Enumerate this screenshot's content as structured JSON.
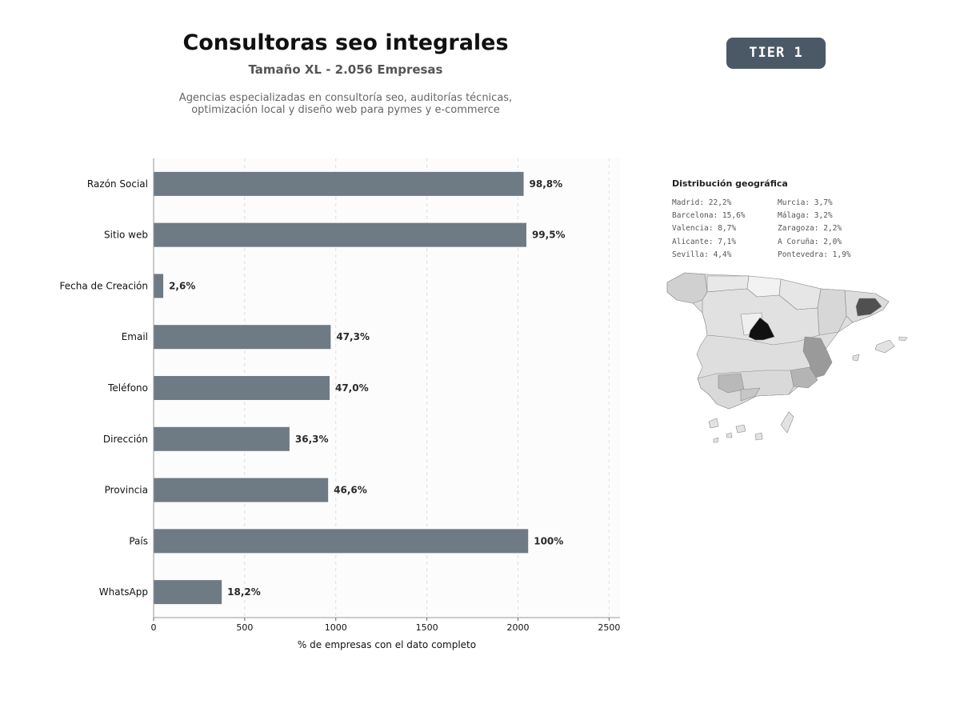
{
  "header": {
    "title": "Consultoras seo integrales",
    "subtitle": "Tamaño XL - 2.056 Empresas",
    "description_line1": "Agencias especializadas en consultoría seo, auditorías técnicas,",
    "description_line2": "optimización local y diseño web para pymes y e-commerce",
    "tier_badge": "TIER 1"
  },
  "chart_data": {
    "type": "bar",
    "orientation": "horizontal",
    "categories": [
      "Razón Social",
      "Sitio web",
      "Fecha de Creación",
      "Email",
      "Teléfono",
      "Dirección",
      "Provincia",
      "País",
      "WhatsApp"
    ],
    "values": [
      2031,
      2046,
      53,
      972,
      966,
      746,
      958,
      2056,
      374
    ],
    "labels": [
      "98,8%",
      "99,5%",
      "2,6%",
      "47,3%",
      "47,0%",
      "36,3%",
      "46,6%",
      "100%",
      "18,2%"
    ],
    "xlabel": "% de empresas con el dato completo",
    "xlim": [
      0,
      2560
    ],
    "xticks": [
      0,
      500,
      1000,
      1500,
      2000,
      2500
    ],
    "grid": "vertical dashed",
    "bar_color": "#6e7a84"
  },
  "geo": {
    "title": "Distribución geográfica",
    "left": [
      "Madrid: 22,2%",
      "Barcelona: 15,6%",
      "Valencia: 8,7%",
      "Alicante: 7,1%",
      "Sevilla: 4,4%"
    ],
    "right": [
      "Murcia: 3,7%",
      "Málaga: 3,2%",
      "Zaragoza: 2,2%",
      "A Coruña: 2,0%",
      "Pontevedra: 1,9%"
    ]
  }
}
